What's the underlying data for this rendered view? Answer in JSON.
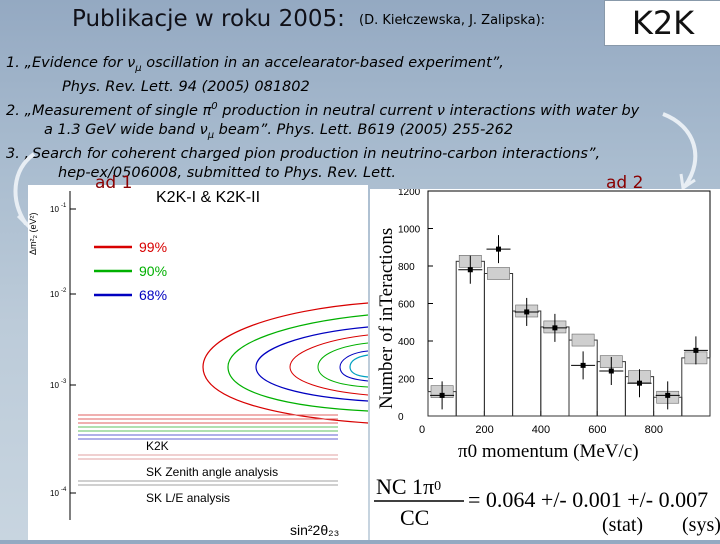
{
  "header": {
    "title": "Publikacje w roku 2005:",
    "authors": "(D. Kiełczewska, J. Zalipska):",
    "badge": "K2K"
  },
  "references": [
    {
      "num": "1.",
      "line1_a": "„Evidence for ",
      "line1_nu": "ν",
      "line1_mu": "μ",
      "line1_b": " oscillation in an accelearator-based experiment”,",
      "line2": "Phys. Rev. Lett. 94 (2005) 081802"
    },
    {
      "num": "2.",
      "line1_a": "„Measurement of single ",
      "line1_pi": "π",
      "line1_zero": "0",
      "line1_b": " production in neutral current ",
      "line1_nu": "ν",
      "line1_c": " interactions with water by",
      "line2_a": "a 1.3 GeV wide band ",
      "line2_nu": "ν",
      "line2_mu": "μ",
      "line2_b": " beam”.   Phys. Lett. B619 (2005) 255-262"
    },
    {
      "num": "3.",
      "line1": "„Search for coherent charged pion production in neutrino-carbon interactions”,",
      "line2": "hep-ex/0506008, submitted to Phys. Rev. Lett."
    }
  ],
  "tags": {
    "left": "ad 1",
    "right": "ad 2"
  },
  "left_plot": {
    "title": "K2K-I & K2K-II",
    "ylabel": "Δm²₂ (eV²)",
    "yticks": [
      "10",
      "10",
      "10",
      "10"
    ],
    "yexp": [
      "-1",
      "-2",
      "-3",
      "-4"
    ],
    "levels": [
      {
        "label": "99%",
        "color": "#d80000"
      },
      {
        "label": "90%",
        "color": "#00b000"
      },
      {
        "label": "68%",
        "color": "#0000c0"
      }
    ],
    "legend": [
      {
        "label": "K2K",
        "color": "#d80000"
      },
      {
        "label": "SK Zenith angle analysis",
        "color": "#c04040"
      },
      {
        "label": "SK L/E analysis",
        "color": "#606060"
      }
    ],
    "xlabel": "sin²2θ₂₃"
  },
  "chart_data": {
    "type": "bar",
    "xlabel": "π0 momentum (MeV/c)",
    "ylabel": "Number of inTeractions",
    "xlim": [
      0,
      1000
    ],
    "ylim": [
      0,
      1200
    ],
    "xticks": [
      "0",
      "200",
      "400",
      "600",
      "800"
    ],
    "yticks": [
      "0",
      "200",
      "400",
      "600",
      "800",
      "1000",
      "1200"
    ],
    "series": [
      {
        "values": [
          {
            "x0": 0,
            "x1": 100,
            "y": 130
          },
          {
            "x0": 100,
            "x1": 200,
            "y": 825
          },
          {
            "x0": 200,
            "x1": 300,
            "y": 760
          },
          {
            "x0": 300,
            "x1": 400,
            "y": 560
          },
          {
            "x0": 400,
            "x1": 500,
            "y": 475
          },
          {
            "x0": 500,
            "x1": 600,
            "y": 405
          },
          {
            "x0": 600,
            "x1": 700,
            "y": 290
          },
          {
            "x0": 700,
            "x1": 800,
            "y": 210
          },
          {
            "x0": 800,
            "x1": 900,
            "y": 100
          },
          {
            "x0": 900,
            "x1": 1000,
            "y": 310
          }
        ]
      },
      {
        "values": [
          {
            "x": 50,
            "y": 110
          },
          {
            "x": 150,
            "y": 780
          },
          {
            "x": 250,
            "y": 890
          },
          {
            "x": 350,
            "y": 555
          },
          {
            "x": 450,
            "y": 470
          },
          {
            "x": 550,
            "y": 270
          },
          {
            "x": 650,
            "y": 240
          },
          {
            "x": 750,
            "y": 175
          },
          {
            "x": 850,
            "y": 110
          },
          {
            "x": 950,
            "y": 350
          }
        ]
      }
    ]
  },
  "formula": {
    "num": "NC 1",
    "num_pi": "π",
    "num_zero": "0",
    "den": "CC",
    "eq": "= 0.064 +/- 0.001 +/- 0.007",
    "stat": "(stat)",
    "sys": "(sys)"
  }
}
